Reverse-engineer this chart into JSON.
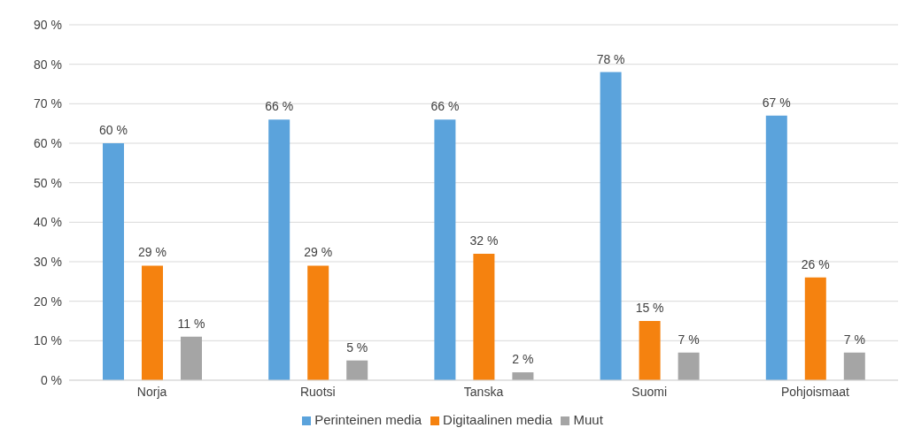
{
  "chart_data": {
    "type": "bar",
    "categories": [
      "Norja",
      "Ruotsi",
      "Tanska",
      "Suomi",
      "Pohjoismaat"
    ],
    "series": [
      {
        "name": "Perinteinen media",
        "color": "#5ba3dc",
        "values": [
          60,
          66,
          66,
          78,
          67
        ],
        "value_labels": [
          "60 %",
          "66 %",
          "66 %",
          "78 %",
          "67 %"
        ]
      },
      {
        "name": "Digitaalinen media",
        "color": "#f5820f",
        "values": [
          29,
          29,
          32,
          15,
          26
        ],
        "value_labels": [
          "29 %",
          "29 %",
          "32 %",
          "15 %",
          "26 %"
        ]
      },
      {
        "name": "Muut",
        "color": "#a5a5a5",
        "values": [
          11,
          5,
          2,
          7,
          7
        ],
        "value_labels": [
          "11 %",
          "5 %",
          "2 %",
          "7 %",
          "7 %"
        ]
      }
    ],
    "ylim": [
      0,
      90
    ],
    "yticks": [
      {
        "value": 0,
        "label": "0 %"
      },
      {
        "value": 10,
        "label": "10 %"
      },
      {
        "value": 20,
        "label": "20 %"
      },
      {
        "value": 30,
        "label": "30 %"
      },
      {
        "value": 40,
        "label": "40 %"
      },
      {
        "value": 50,
        "label": "50 %"
      },
      {
        "value": 60,
        "label": "60 %"
      },
      {
        "value": 70,
        "label": "70 %"
      },
      {
        "value": 80,
        "label": "80 %"
      },
      {
        "value": 90,
        "label": "90 %"
      }
    ],
    "grid": "y",
    "legend": "bottom"
  }
}
